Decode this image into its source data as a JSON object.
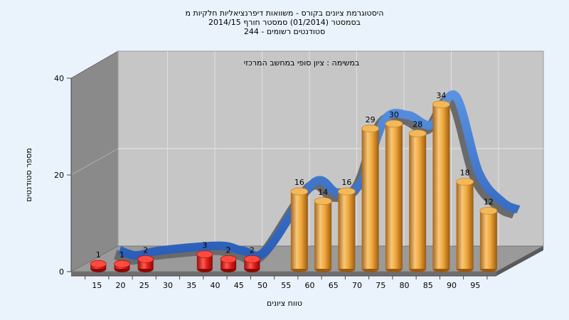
{
  "chart_data": {
    "type": "bar",
    "title_lines": [
      "היסטוגרמת ציונים בקורס - משוואות דיפרנציאליות חלקיות מ",
      "בסמסטר  (01/2014)  סמסטר חורף 2014/15",
      "סטודנטים רשומים - 244"
    ],
    "annotation": "במשימה : ציון סופי במחשב המרכזי",
    "xlabel": "טווח ציונים",
    "ylabel": "מספר סטודנטים",
    "ylim": [
      0,
      40
    ],
    "y_ticks": [
      0,
      20,
      40
    ],
    "x_ticks": [
      "15",
      "20",
      "25",
      "30",
      "35",
      "40",
      "45",
      "50",
      "55",
      "60",
      "65",
      "70",
      "75",
      "80",
      "85",
      "90",
      "95"
    ],
    "bars": [
      {
        "x": 15,
        "value": 1,
        "color": "red"
      },
      {
        "x": 20,
        "value": 1,
        "color": "red"
      },
      {
        "x": 25,
        "value": 2,
        "color": "red"
      },
      {
        "x": 37.5,
        "value": 3,
        "color": "red"
      },
      {
        "x": 42.5,
        "value": 2,
        "color": "red"
      },
      {
        "x": 47.5,
        "value": 2,
        "color": "red"
      },
      {
        "x": 57.5,
        "value": 16,
        "color": "orange"
      },
      {
        "x": 62.5,
        "value": 14,
        "color": "orange"
      },
      {
        "x": 67.5,
        "value": 16,
        "color": "orange"
      },
      {
        "x": 72.5,
        "value": 29,
        "color": "orange"
      },
      {
        "x": 77.5,
        "value": 30,
        "color": "orange"
      },
      {
        "x": 82.5,
        "value": 28,
        "color": "orange"
      },
      {
        "x": 87.5,
        "value": 34,
        "color": "orange"
      },
      {
        "x": 92.5,
        "value": 18,
        "color": "orange"
      },
      {
        "x": 97.5,
        "value": 12,
        "color": "orange"
      }
    ],
    "trend_line": "smoothed curve of counts",
    "grid": true,
    "colors": {
      "background": "#eaf3fb",
      "back_wall": "#c4c4c4",
      "side_wall": "#8a8a8a",
      "floor": "#9a9a9a",
      "red_bar": "#e0201c",
      "orange_bar": "#f0ad3c",
      "trend": "#3a72c8"
    }
  }
}
